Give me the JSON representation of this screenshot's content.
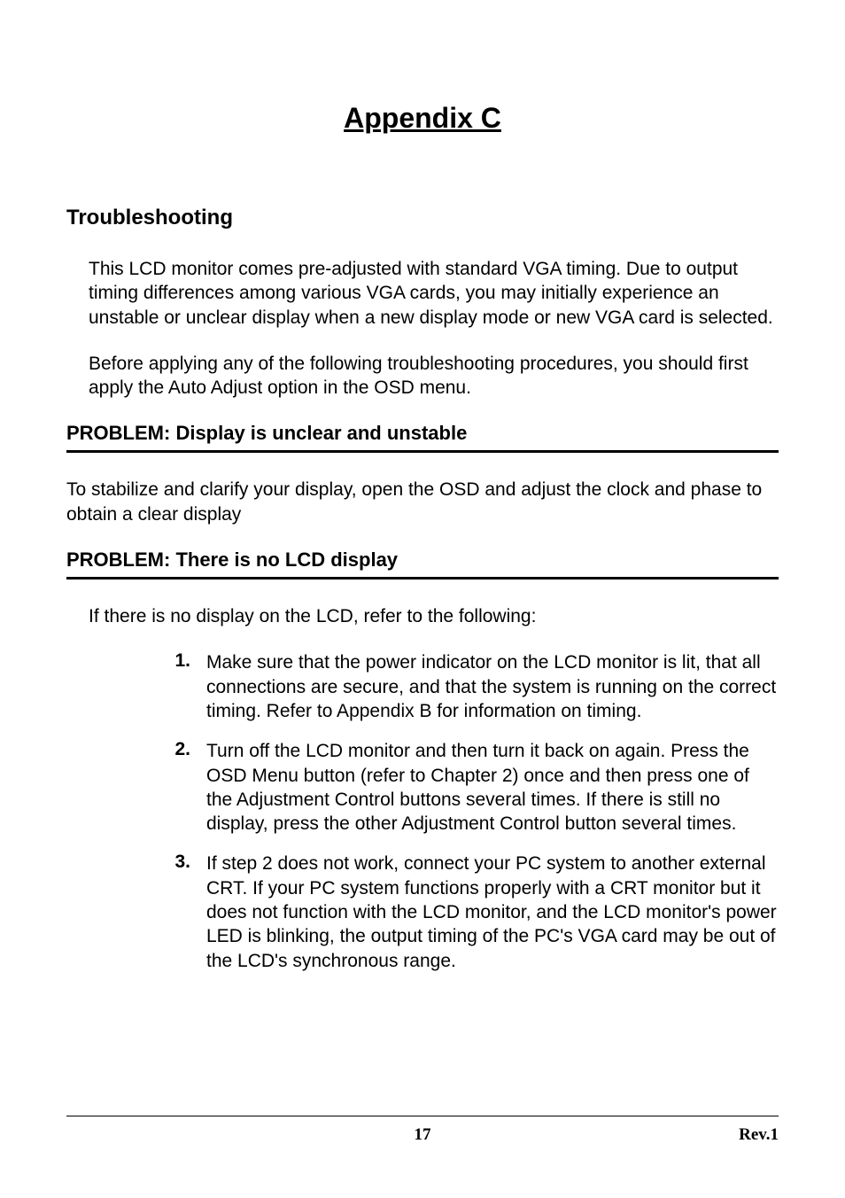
{
  "title": "Appendix C",
  "section_heading": "Troubleshooting",
  "intro_para1": "This LCD monitor comes pre-adjusted with standard VGA timing.  Due to output timing differences among various VGA cards, you may initially experience an unstable or unclear display when a new display mode or new VGA card is selected.",
  "intro_para2": "Before applying any of the following troubleshooting procedures, you should first apply the Auto Adjust option in the OSD menu.",
  "problem1": {
    "heading": "PROBLEM: Display is unclear and unstable",
    "body": "To stabilize and clarify your display, open the OSD and adjust the clock and phase to obtain a clear display"
  },
  "problem2": {
    "heading": "PROBLEM: There is no LCD display",
    "intro": "If there is no display on the LCD, refer to the following:",
    "items": [
      {
        "num": "1.",
        "text": "Make sure that the power indicator on the LCD monitor is lit, that all connections are secure, and that the system is running on the correct timing.  Refer to Appendix B for information on timing."
      },
      {
        "num": "2.",
        "text": "Turn off the LCD monitor and then turn it back on again.  Press the OSD Menu button (refer to Chapter 2) once and then press one of the Adjustment Control buttons several times. If there is still no display, press the other Adjustment Control button several times."
      },
      {
        "num": "3.",
        "text": "If step 2 does not work, connect your PC system to another external CRT.  If your PC system functions properly with a CRT monitor but it does not function with the LCD monitor, and the LCD monitor's power LED is blinking, the output timing of the PC's VGA card may be out of the LCD's synchronous range."
      }
    ]
  },
  "footer": {
    "page": "17",
    "rev": "Rev.1"
  },
  "colors": {
    "text": "#000000",
    "background": "#ffffff",
    "rule": "#000000"
  }
}
